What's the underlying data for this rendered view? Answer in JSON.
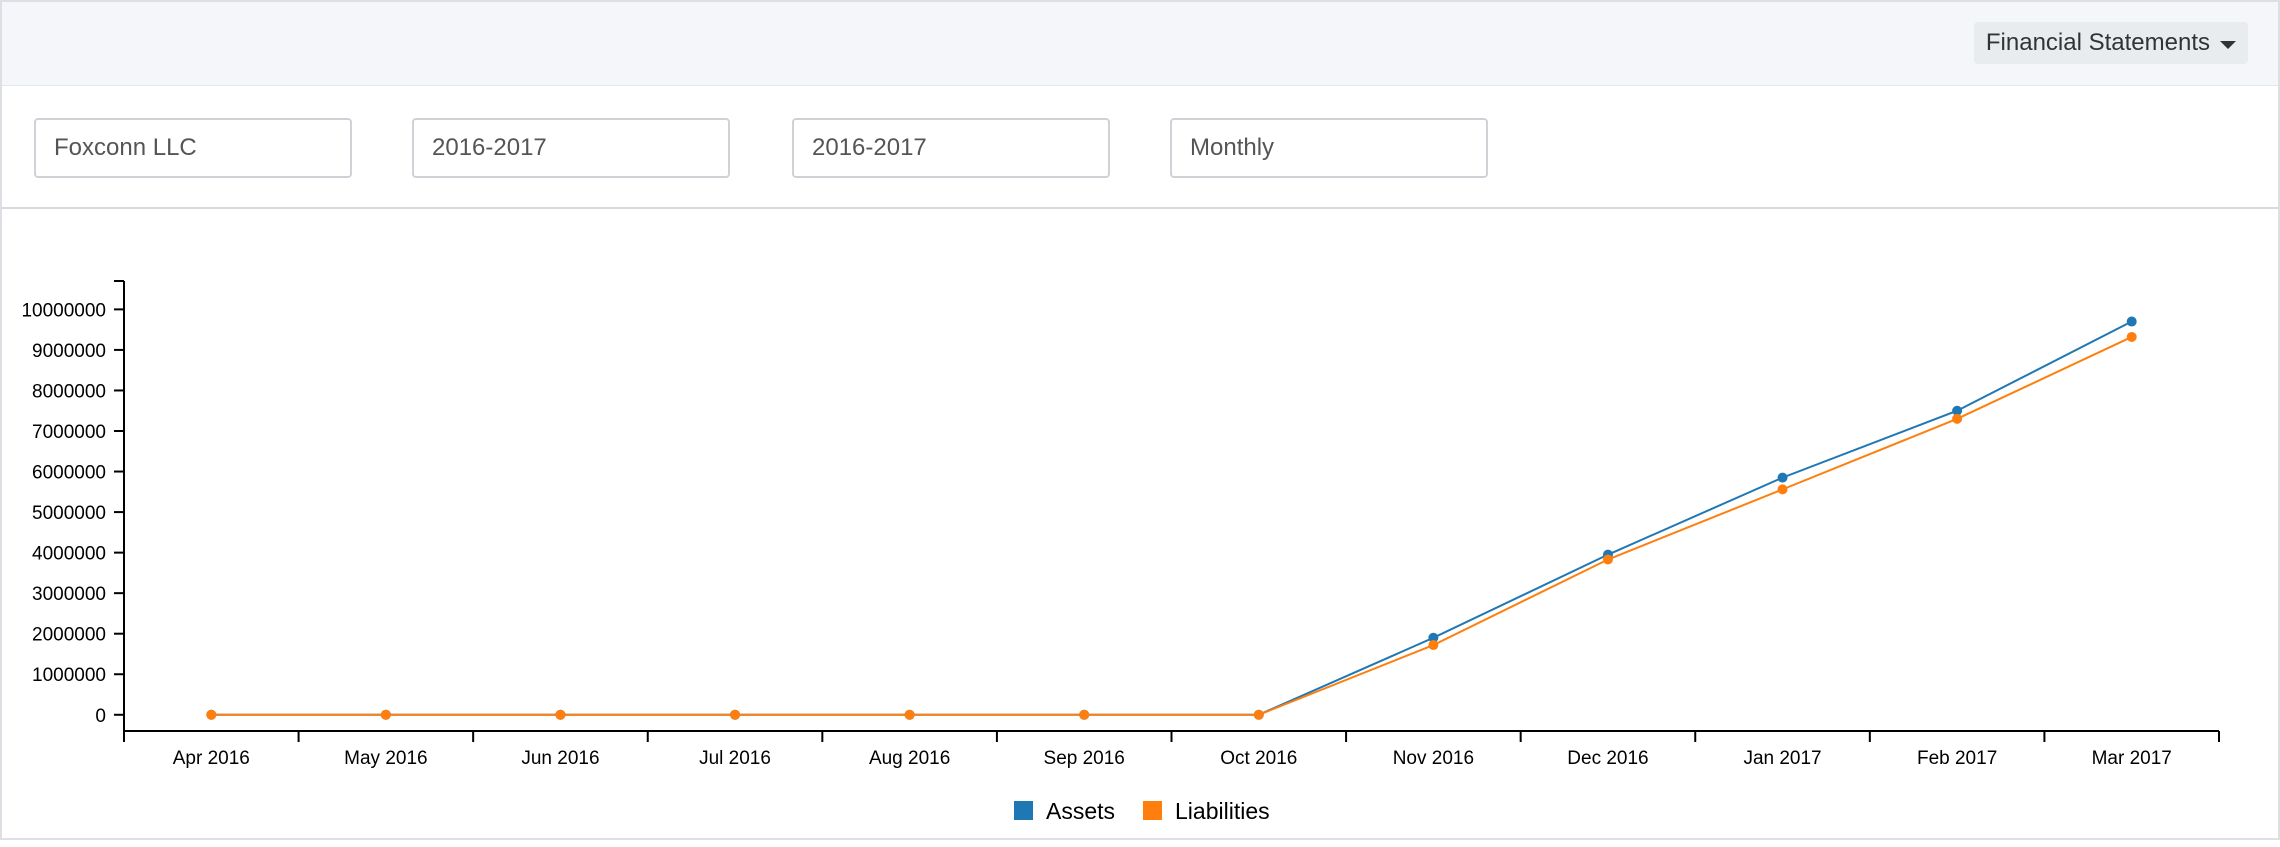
{
  "header": {
    "menu_label": "Financial Statements",
    "menu_icon": "caret-down-icon"
  },
  "filters": {
    "company": "Foxconn LLC",
    "fiscal_year_from": "2016-2017",
    "fiscal_year_to": "2016-2017",
    "periodicity": "Monthly"
  },
  "chart_data": {
    "type": "line",
    "categories": [
      "Apr 2016",
      "May 2016",
      "Jun 2016",
      "Jul 2016",
      "Aug 2016",
      "Sep 2016",
      "Oct 2016",
      "Nov 2016",
      "Dec 2016",
      "Jan 2017",
      "Feb 2017",
      "Mar 2017"
    ],
    "series": [
      {
        "name": "Assets",
        "color": "#1f77b4",
        "values": [
          0,
          0,
          0,
          0,
          0,
          0,
          0,
          1900000,
          3950000,
          5850000,
          7500000,
          9700000
        ]
      },
      {
        "name": "Liabilities",
        "color": "#ff7f0e",
        "values": [
          0,
          0,
          0,
          0,
          0,
          0,
          0,
          1720000,
          3830000,
          5560000,
          7300000,
          9320000
        ]
      }
    ],
    "yticks": [
      0,
      1000000,
      2000000,
      3000000,
      4000000,
      5000000,
      6000000,
      7000000,
      8000000,
      9000000,
      10000000
    ],
    "ylim": [
      -400000,
      10700000
    ],
    "legend_position": "bottom-center",
    "grid": false
  }
}
